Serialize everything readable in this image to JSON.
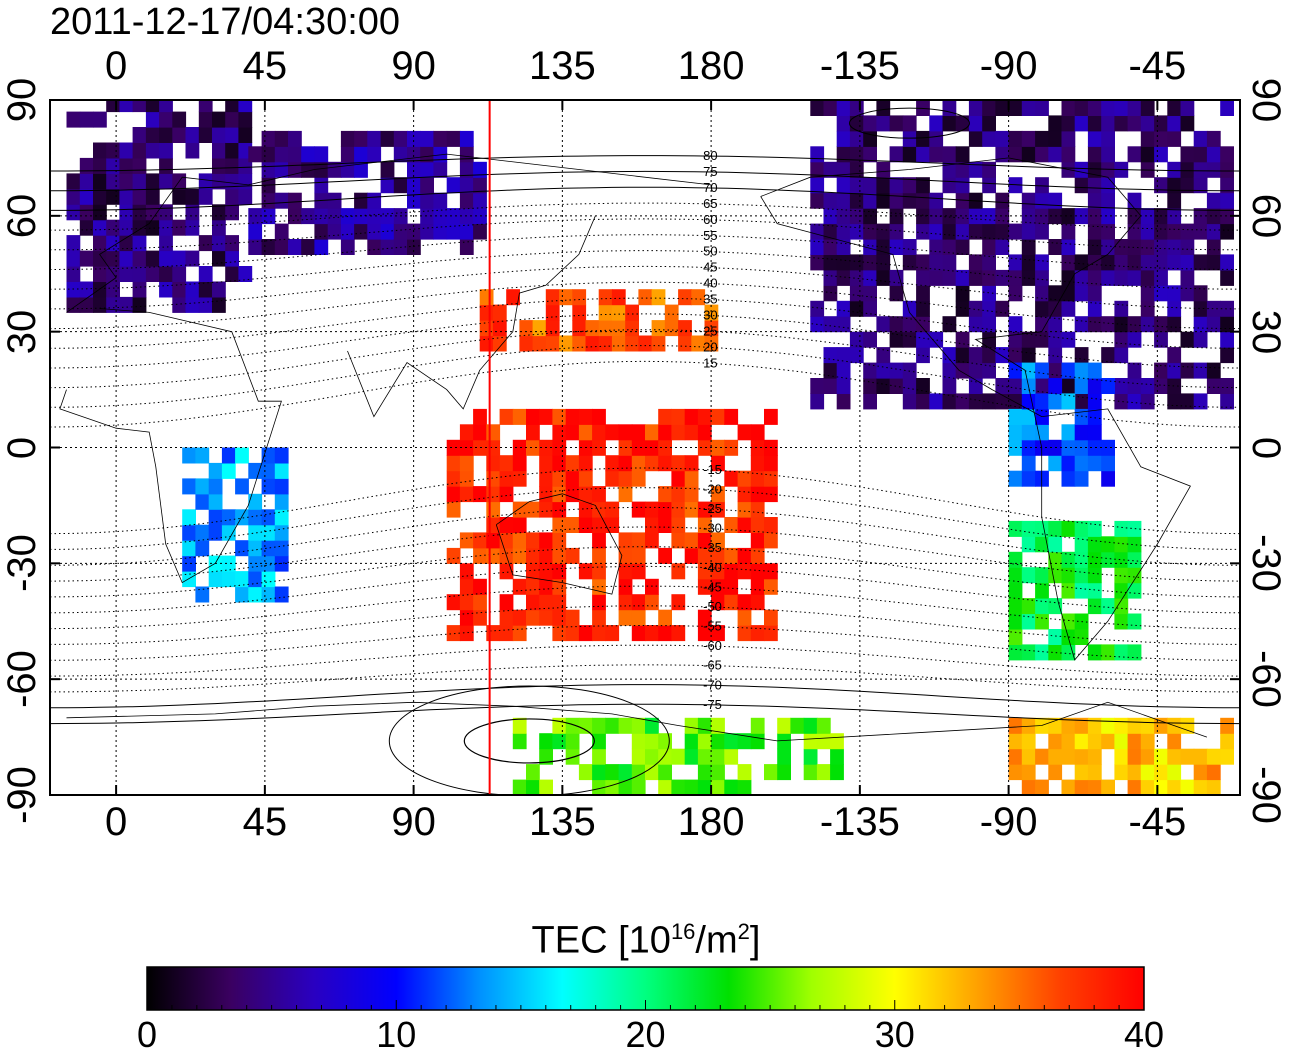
{
  "title": "2011-12-17/04:30:00",
  "top_ticks": [
    "0",
    "45",
    "90",
    "135",
    "180",
    "-135",
    "-90",
    "-45"
  ],
  "bottom_ticks": [
    "0",
    "45",
    "90",
    "135",
    "180",
    "-135",
    "-90",
    "-45"
  ],
  "left_ticks": [
    "90",
    "60",
    "30",
    "0",
    "-30",
    "-60",
    "-90"
  ],
  "right_ticks": [
    "90",
    "60",
    "30",
    "0",
    "-30",
    "-60",
    "-90"
  ],
  "contour_labels": [
    "80",
    "75",
    "70",
    "65",
    "60",
    "55",
    "50",
    "45",
    "40",
    "35",
    "30",
    "25",
    "20",
    "15",
    "-15",
    "-20",
    "-25",
    "-30",
    "-35",
    "-40",
    "-45",
    "-50",
    "-55",
    "-60",
    "-65",
    "-70",
    "-75"
  ],
  "colorbar": {
    "title_main": "TEC  [10",
    "title_exp": "16",
    "title_unit": "/m",
    "title_exp2": "2",
    "title_end": "]",
    "ticks": [
      "0",
      "10",
      "20",
      "30",
      "40"
    ],
    "colors": [
      "#000000",
      "#3a0060",
      "#2a00c0",
      "#0000ff",
      "#0090ff",
      "#00ffff",
      "#00ff80",
      "#00e000",
      "#a0ff00",
      "#ffff00",
      "#ffa000",
      "#ff4000",
      "#ff0000"
    ]
  },
  "chart_data": {
    "type": "heatmap",
    "title": "2011-12-17/04:30:00",
    "xlabel": "",
    "ylabel": "",
    "xlim": [
      -20,
      340
    ],
    "ylim": [
      -90,
      90
    ],
    "x_ticks": [
      "0",
      "45",
      "90",
      "135",
      "180",
      "-135",
      "-90",
      "-45"
    ],
    "y_ticks": [
      "90",
      "60",
      "30",
      "0",
      "-30",
      "-60",
      "-90"
    ],
    "colorbar_label": "TEC [10^16/m^2]",
    "colorbar_range": [
      0,
      40
    ],
    "grid": true,
    "marker_longitude": 113,
    "regions": [
      {
        "lon": [
          -15,
          40
        ],
        "lat": [
          35,
          90
        ],
        "tec": 4
      },
      {
        "lon": [
          40,
          110
        ],
        "lat": [
          50,
          80
        ],
        "tec": 5
      },
      {
        "lon": [
          210,
          335
        ],
        "lat": [
          10,
          90
        ],
        "tec": 4
      },
      {
        "lon": [
          270,
          300
        ],
        "lat": [
          -10,
          20
        ],
        "tec": 12
      },
      {
        "lon": [
          100,
          200
        ],
        "lat": [
          -50,
          10
        ],
        "tec": 38
      },
      {
        "lon": [
          110,
          180
        ],
        "lat": [
          25,
          40
        ],
        "tec": 36
      },
      {
        "lon": [
          120,
          220
        ],
        "lat": [
          -90,
          -70
        ],
        "tec": 25
      },
      {
        "lon": [
          270,
          335
        ],
        "lat": [
          -90,
          -70
        ],
        "tec": 32
      },
      {
        "lon": [
          270,
          310
        ],
        "lat": [
          -55,
          -20
        ],
        "tec": 22
      },
      {
        "lon": [
          20,
          50
        ],
        "lat": [
          -40,
          0
        ],
        "tec": 14
      }
    ]
  }
}
